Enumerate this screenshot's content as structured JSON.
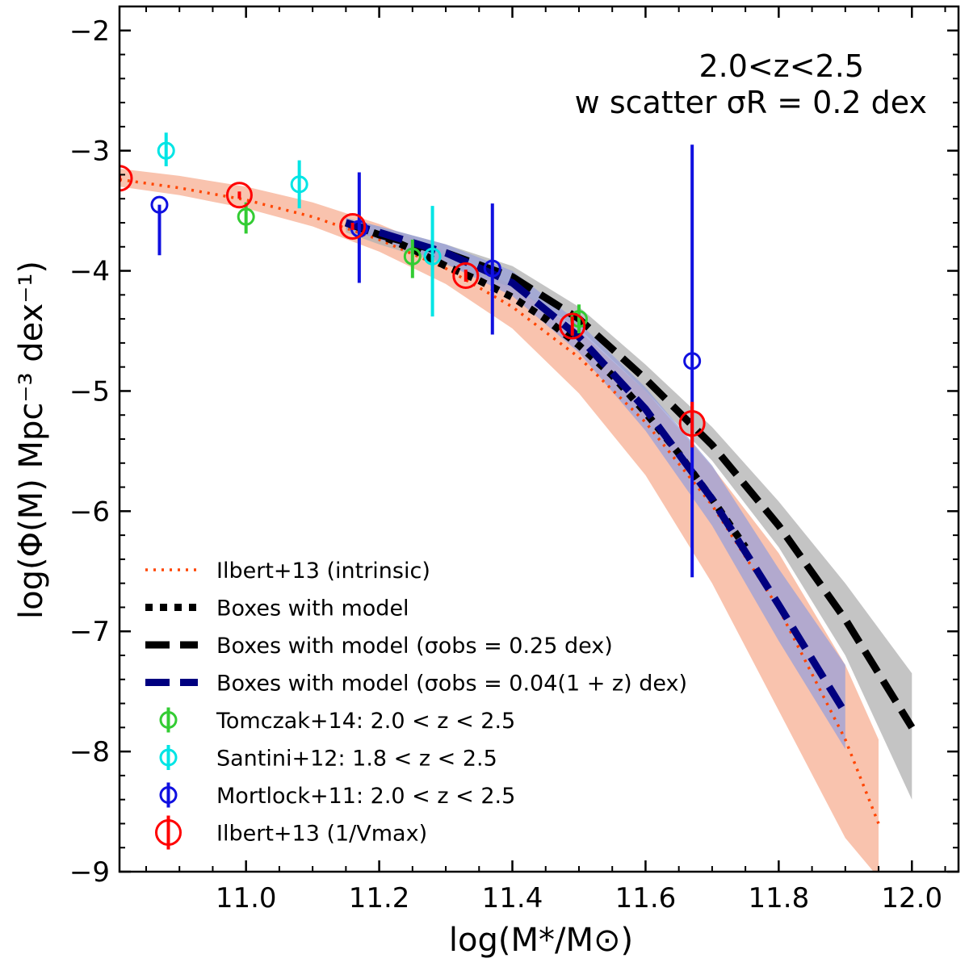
{
  "chart_data": {
    "type": "line",
    "title": "",
    "xlabel": "log(M*/M⊙)",
    "ylabel": "log(Φ(M) Mpc⁻³ dex⁻¹)",
    "xlim": [
      10.81,
      12.07
    ],
    "ylim": [
      -9,
      -1.8
    ],
    "xticks": [
      11.0,
      11.2,
      11.4,
      11.6,
      11.8,
      12.0
    ],
    "xtick_labels": [
      "11.0",
      "11.2",
      "11.4",
      "11.6",
      "11.8",
      "12.0"
    ],
    "yticks": [
      -9,
      -8,
      -7,
      -6,
      -5,
      -4,
      -3,
      -2
    ],
    "ytick_labels": [
      "−9",
      "−8",
      "−7",
      "−6",
      "−5",
      "−4",
      "−3",
      "−2"
    ],
    "annotations": [
      "2.0<z<2.5",
      "w scatter σR = 0.2 dex"
    ],
    "legend": [
      {
        "label": "Ilbert+13 (intrinsic)",
        "style": "dotted",
        "color": "#ff4500"
      },
      {
        "label": "Boxes with model",
        "style": "thick-dotted",
        "color": "#000000"
      },
      {
        "label": "Boxes with model (σobs = 0.25 dex)",
        "style": "dashed",
        "color": "#000000"
      },
      {
        "label": "Boxes with model (σobs = 0.04(1 + z) dex)",
        "style": "dashed",
        "color": "#000080"
      },
      {
        "label": "Tomczak+14: 2.0 < z < 2.5",
        "style": "marker",
        "color": "#33cc33"
      },
      {
        "label": "Santini+12: 1.8 < z < 2.5",
        "style": "marker",
        "color": "#00e5e5"
      },
      {
        "label": "Mortlock+11: 2.0 < z < 2.5",
        "style": "marker",
        "color": "#1010e0"
      },
      {
        "label": "Ilbert+13 (1/Vmax)",
        "style": "marker-large",
        "color": "#ff0000"
      }
    ],
    "series": [
      {
        "name": "Ilbert+13 (intrinsic)",
        "kind": "line",
        "dash": "dotted",
        "color": "#ff4500",
        "x": [
          10.81,
          10.9,
          11.0,
          11.1,
          11.2,
          11.3,
          11.4,
          11.5,
          11.6,
          11.7,
          11.8,
          11.9,
          11.95
        ],
        "y": [
          -3.24,
          -3.31,
          -3.41,
          -3.55,
          -3.74,
          -3.98,
          -4.3,
          -4.72,
          -5.26,
          -5.95,
          -6.81,
          -7.9,
          -8.6
        ],
        "band_color": "#f8b8a0",
        "band_lower": [
          -3.3,
          -3.37,
          -3.48,
          -3.63,
          -3.84,
          -4.11,
          -4.48,
          -5.02,
          -5.7,
          -6.6,
          -7.66,
          -8.72,
          -9.05
        ],
        "band_upper": [
          -3.15,
          -3.21,
          -3.3,
          -3.43,
          -3.61,
          -3.84,
          -4.12,
          -4.5,
          -5.0,
          -5.63,
          -6.35,
          -7.28,
          -7.9
        ]
      },
      {
        "name": "Boxes with model",
        "kind": "line",
        "dash": "thick-dotted",
        "color": "#000000",
        "x": [
          11.15,
          11.2,
          11.25,
          11.3,
          11.35,
          11.4,
          11.45,
          11.5,
          11.55,
          11.6,
          11.65,
          11.7,
          11.75
        ],
        "y": [
          -3.6,
          -3.7,
          -3.82,
          -3.96,
          -4.08,
          -4.22,
          -4.4,
          -4.62,
          -4.87,
          -5.18,
          -5.52,
          -5.9,
          -6.3
        ]
      },
      {
        "name": "Boxes with model (σobs = 0.25 dex)",
        "kind": "line",
        "dash": "dashed",
        "color": "#000000",
        "x": [
          11.15,
          11.2,
          11.3,
          11.4,
          11.5,
          11.6,
          11.7,
          11.8,
          11.9,
          12.0
        ],
        "y": [
          -3.6,
          -3.7,
          -3.85,
          -4.05,
          -4.4,
          -4.9,
          -5.45,
          -6.12,
          -6.9,
          -7.8
        ],
        "band_color": "#b0b0b0",
        "band_lower": [
          -3.68,
          -3.78,
          -3.95,
          -4.14,
          -4.48,
          -5.0,
          -5.58,
          -6.3,
          -7.2,
          -8.4
        ],
        "band_upper": [
          -3.56,
          -3.63,
          -3.78,
          -3.96,
          -4.3,
          -4.78,
          -5.3,
          -5.92,
          -6.6,
          -7.35
        ]
      },
      {
        "name": "Boxes with model (σobs = 0.04(1 + z) dex)",
        "kind": "line",
        "dash": "dashed",
        "color": "#000080",
        "x": [
          11.15,
          11.2,
          11.3,
          11.4,
          11.5,
          11.6,
          11.7,
          11.8,
          11.9
        ],
        "y": [
          -3.6,
          -3.68,
          -3.85,
          -4.1,
          -4.55,
          -5.15,
          -5.9,
          -6.78,
          -7.68
        ],
        "band_color": "#9aa0d8",
        "band_lower": [
          -3.65,
          -3.74,
          -3.94,
          -4.21,
          -4.68,
          -5.33,
          -6.12,
          -7.08,
          -7.98
        ],
        "band_upper": [
          -3.56,
          -3.63,
          -3.78,
          -4.0,
          -4.43,
          -4.97,
          -5.62,
          -6.48,
          -7.28
        ]
      },
      {
        "name": "Tomczak+14: 2.0 < z < 2.5",
        "kind": "points",
        "marker_size": "small",
        "color": "#33cc33",
        "x": [
          11.0,
          11.25,
          11.5
        ],
        "y": [
          -3.55,
          -3.88,
          -4.4
        ],
        "yerr_low": [
          0.14,
          0.18,
          0.12
        ],
        "yerr_high": [
          0.12,
          0.14,
          0.12
        ]
      },
      {
        "name": "Santini+12: 1.8 < z < 2.5",
        "kind": "points",
        "marker_size": "small",
        "color": "#00e5e5",
        "x": [
          10.88,
          11.08,
          11.28
        ],
        "y": [
          -3.0,
          -3.28,
          -3.88
        ],
        "yerr_low": [
          0.13,
          0.2,
          0.5
        ],
        "yerr_high": [
          0.15,
          0.2,
          0.42
        ]
      },
      {
        "name": "Mortlock+11: 2.0 < z < 2.5",
        "kind": "points",
        "marker_size": "small",
        "color": "#1010e0",
        "x": [
          10.87,
          11.17,
          11.37,
          11.67
        ],
        "y": [
          -3.45,
          -3.65,
          -3.98,
          -4.75
        ],
        "yerr_low": [
          0.42,
          0.45,
          0.55,
          1.8
        ],
        "yerr_high": [
          0.0,
          0.47,
          0.54,
          1.8
        ]
      },
      {
        "name": "Ilbert+13 (1/Vmax)",
        "kind": "points",
        "marker_size": "large",
        "color": "#ff0000",
        "x": [
          10.81,
          10.99,
          11.16,
          11.33,
          11.49,
          11.67
        ],
        "y": [
          -3.23,
          -3.37,
          -3.63,
          -4.04,
          -4.46,
          -5.27
        ],
        "yerr_low": [
          0.03,
          0.03,
          0.03,
          0.05,
          0.08,
          0.2
        ],
        "yerr_high": [
          0.03,
          0.03,
          0.03,
          0.05,
          0.08,
          0.18
        ]
      }
    ]
  }
}
